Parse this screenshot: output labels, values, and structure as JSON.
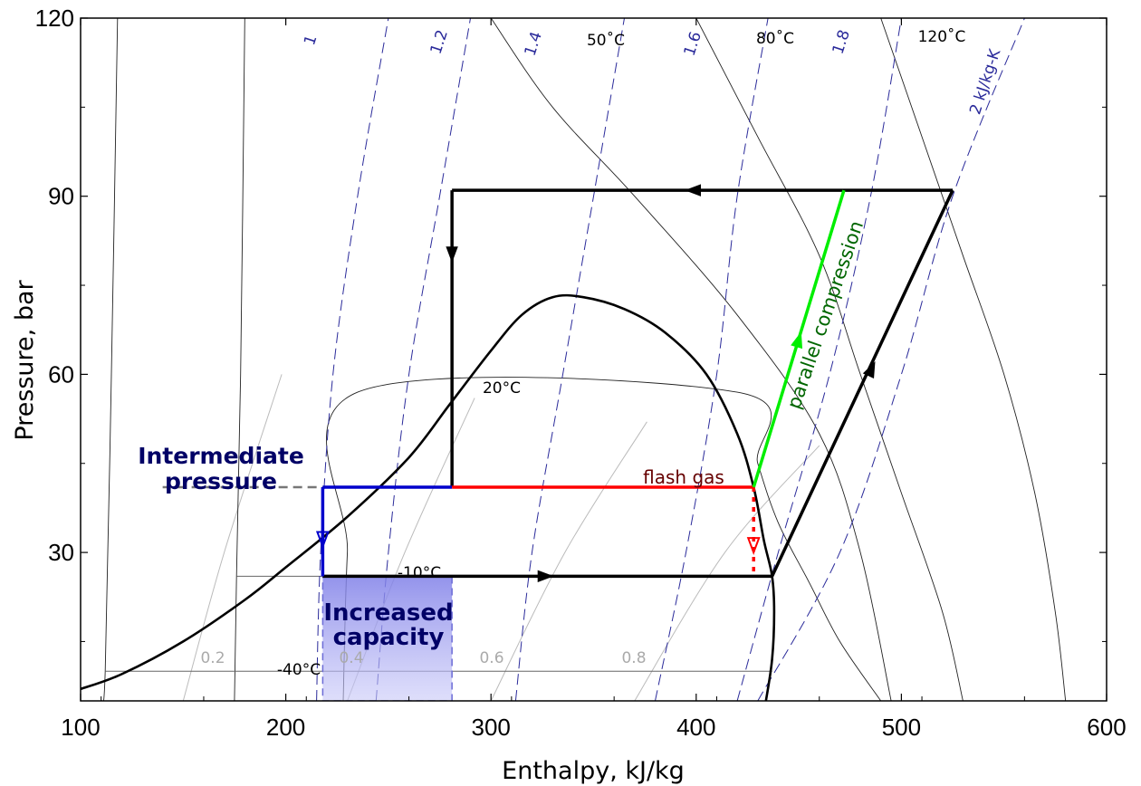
{
  "chart_data": {
    "type": "line",
    "xlabel": "Enthalpy, kJ/kg",
    "ylabel": "Pressure, bar",
    "xlim": [
      100,
      600
    ],
    "ylim": [
      5,
      120
    ],
    "x_ticks": [
      100,
      200,
      300,
      400,
      500,
      600
    ],
    "y_ticks": [
      30,
      60,
      90,
      120
    ],
    "grid": false,
    "saturation_dome": [
      [
        100,
        7
      ],
      [
        120,
        9.5
      ],
      [
        150,
        15
      ],
      [
        180,
        22
      ],
      [
        200,
        27.5
      ],
      [
        230,
        36
      ],
      [
        260,
        46
      ],
      [
        280,
        55
      ],
      [
        300,
        64
      ],
      [
        315,
        70
      ],
      [
        330,
        73
      ],
      [
        345,
        73
      ],
      [
        365,
        71
      ],
      [
        385,
        67
      ],
      [
        405,
        60
      ],
      [
        420,
        50
      ],
      [
        428,
        41
      ],
      [
        433,
        32
      ],
      [
        437,
        26
      ],
      [
        438,
        20
      ],
      [
        437,
        12
      ],
      [
        434,
        5
      ]
    ],
    "entropy_lines": [
      {
        "label": "1",
        "points": [
          [
            215,
            5
          ],
          [
            217,
            30
          ],
          [
            223,
            60
          ],
          [
            235,
            90
          ],
          [
            250,
            120
          ]
        ]
      },
      {
        "label": "1.2",
        "points": [
          [
            244,
            5
          ],
          [
            250,
            30
          ],
          [
            260,
            60
          ],
          [
            275,
            90
          ],
          [
            290,
            120
          ]
        ]
      },
      {
        "label": "1.4",
        "points": [
          [
            312,
            5
          ],
          [
            320,
            30
          ],
          [
            335,
            60
          ],
          [
            350,
            90
          ],
          [
            365,
            120
          ]
        ]
      },
      {
        "label": "1.6",
        "points": [
          [
            380,
            5
          ],
          [
            395,
            30
          ],
          [
            410,
            60
          ],
          [
            420,
            90
          ],
          [
            435,
            120
          ]
        ]
      },
      {
        "label": "1.8",
        "points": [
          [
            420,
            5
          ],
          [
            440,
            30
          ],
          [
            465,
            60
          ],
          [
            485,
            90
          ],
          [
            500,
            120
          ]
        ]
      },
      {
        "label": "2 kJ/kg-K",
        "points": [
          [
            430,
            5
          ],
          [
            470,
            30
          ],
          [
            500,
            60
          ],
          [
            525,
            90
          ],
          [
            560,
            120
          ]
        ]
      }
    ],
    "isotherms": [
      {
        "label": "-40°C",
        "points": [
          [
            110,
            5
          ],
          [
            112,
            10
          ],
          [
            115,
            60
          ],
          [
            118,
            120
          ]
        ]
      },
      {
        "label": "-10°C",
        "points": [
          [
            175,
            5
          ],
          [
            176,
            26
          ],
          [
            178,
            60
          ],
          [
            180,
            120
          ]
        ]
      },
      {
        "label": "20°C",
        "points": [
          [
            228,
            5
          ],
          [
            230,
            30
          ],
          [
            235,
            57
          ],
          [
            420,
            57
          ],
          [
            430,
            45
          ],
          [
            440,
            35
          ],
          [
            455,
            25
          ],
          [
            470,
            15
          ],
          [
            490,
            5
          ]
        ]
      },
      {
        "label": "50°C",
        "points": [
          [
            300,
            120
          ],
          [
            330,
            105
          ],
          [
            370,
            90
          ],
          [
            420,
            70
          ],
          [
            460,
            50
          ],
          [
            480,
            30
          ],
          [
            495,
            5
          ]
        ]
      },
      {
        "label": "80°C",
        "points": [
          [
            400,
            120
          ],
          [
            430,
            100
          ],
          [
            460,
            80
          ],
          [
            480,
            60
          ],
          [
            500,
            40
          ],
          [
            520,
            20
          ],
          [
            530,
            5
          ]
        ]
      },
      {
        "label": "120°C",
        "points": [
          [
            490,
            120
          ],
          [
            510,
            100
          ],
          [
            530,
            80
          ],
          [
            550,
            60
          ],
          [
            565,
            40
          ],
          [
            575,
            20
          ],
          [
            580,
            5
          ]
        ]
      }
    ],
    "quality_lines": [
      {
        "label": "0.2",
        "x_at_bottom": 150
      },
      {
        "label": "0.4",
        "x_at_bottom": 230
      },
      {
        "label": "0.6",
        "x_at_bottom": 300
      },
      {
        "label": "0.8",
        "x_at_bottom": 370
      }
    ],
    "cycle": {
      "gas_cooler": [
        [
          525,
          91
        ],
        [
          281,
          91
        ]
      ],
      "expansion_valve": [
        [
          281,
          91
        ],
        [
          281,
          41
        ]
      ],
      "evaporator": [
        [
          218,
          26
        ],
        [
          437,
          26
        ]
      ],
      "compressor": [
        [
          437,
          26
        ],
        [
          525,
          91
        ]
      ]
    },
    "intermediate_pressure_line": {
      "pressure": 41,
      "x_from": 140,
      "x_to": 218
    },
    "liquid_line": [
      [
        218,
        41
      ],
      [
        281,
        41
      ]
    ],
    "liquid_expansion": [
      [
        218,
        41
      ],
      [
        218,
        26
      ]
    ],
    "flash_gas_line": [
      [
        281,
        41
      ],
      [
        428,
        41
      ]
    ],
    "flash_gas_drop": [
      [
        428,
        41
      ],
      [
        428,
        26
      ]
    ],
    "parallel_compression": [
      [
        428,
        41
      ],
      [
        472,
        91
      ]
    ],
    "increased_capacity": {
      "x": [
        218,
        281
      ],
      "y": [
        5,
        26
      ]
    },
    "annotations": {
      "intermediate_pressure": "Intermediate\npressure",
      "increased_capacity": "Increased\ncapacity",
      "flash_gas": "flash gas",
      "parallel_compression": "parallel compression"
    },
    "isotherm_labels": [
      "-40°C",
      "-10°C",
      "20°C",
      "50˚C",
      "80˚C",
      "120˚C"
    ],
    "quality_labels": [
      "0.2",
      "0.4",
      "0.6",
      "0.8"
    ],
    "entropy_labels": [
      "1",
      "1.2",
      "1.4",
      "1.6",
      "1.8",
      "2 kJ/kg-K"
    ],
    "colors": {
      "cycle": "#000000",
      "liquid": "#0000cc",
      "flash": "#ff0000",
      "parallel": "#00ee00",
      "entropy": "#2a2a9a",
      "quality": "#bbbbbb",
      "isotherm": "#222222",
      "annotation_navy": "#000066",
      "annotation_brown": "#660000",
      "annotation_green": "#006600",
      "capacity_fill": "#8888ee"
    }
  }
}
